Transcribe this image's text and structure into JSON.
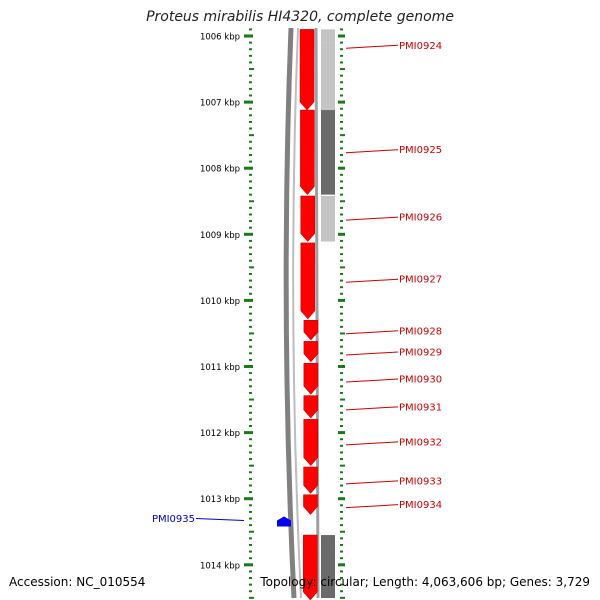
{
  "title": "Proteus mirabilis HI4320, complete genome",
  "accession": "Accession: NC_010554",
  "topology": "Topology: circular; Length: 4,063,606 bp; Genes: 3,729",
  "colors": {
    "gene_forward": "#ff0000",
    "gene_reverse": "#0000ee",
    "label_forward": "#cc0000",
    "label_reverse": "#0000cc",
    "tick": "#1a7a1a",
    "backbone": "#808080",
    "track_gray_light": "#c4c4c4",
    "track_gray_dark": "#6a6a6a"
  },
  "scale": {
    "ticks": [
      {
        "kbp": 1006,
        "label": "1006 kbp"
      },
      {
        "kbp": 1007,
        "label": "1007 kbp"
      },
      {
        "kbp": 1008,
        "label": "1008 kbp"
      },
      {
        "kbp": 1009,
        "label": "1009 kbp"
      },
      {
        "kbp": 1010,
        "label": "1010 kbp"
      },
      {
        "kbp": 1011,
        "label": "1011 kbp"
      },
      {
        "kbp": 1012,
        "label": "1012 kbp"
      },
      {
        "kbp": 1013,
        "label": "1013 kbp"
      },
      {
        "kbp": 1014,
        "label": "1014 kbp"
      }
    ]
  },
  "genes": [
    {
      "id": "PMI0924",
      "strand": "+",
      "start_kbp": 1005.9,
      "end_kbp": 1007.12,
      "label_kbp": 1006.14
    },
    {
      "id": "PMI0925",
      "strand": "+",
      "start_kbp": 1007.12,
      "end_kbp": 1008.4,
      "label_kbp": 1007.72
    },
    {
      "id": "PMI0926",
      "strand": "+",
      "start_kbp": 1008.42,
      "end_kbp": 1009.11,
      "label_kbp": 1008.74
    },
    {
      "id": "PMI0927",
      "strand": "+",
      "start_kbp": 1009.13,
      "end_kbp": 1010.28,
      "label_kbp": 1009.68
    },
    {
      "id": "PMI0928",
      "strand": "+",
      "start_kbp": 1010.3,
      "end_kbp": 1010.6,
      "label_kbp": 1010.46
    },
    {
      "id": "PMI0929",
      "strand": "+",
      "start_kbp": 1010.62,
      "end_kbp": 1010.93,
      "label_kbp": 1010.78
    },
    {
      "id": "PMI0930",
      "strand": "+",
      "start_kbp": 1010.95,
      "end_kbp": 1011.42,
      "label_kbp": 1011.19
    },
    {
      "id": "PMI0931",
      "strand": "+",
      "start_kbp": 1011.44,
      "end_kbp": 1011.78,
      "label_kbp": 1011.61
    },
    {
      "id": "PMI0932",
      "strand": "+",
      "start_kbp": 1011.8,
      "end_kbp": 1012.5,
      "label_kbp": 1012.14
    },
    {
      "id": "PMI0933",
      "strand": "+",
      "start_kbp": 1012.52,
      "end_kbp": 1012.92,
      "label_kbp": 1012.73
    },
    {
      "id": "PMI0934",
      "strand": "+",
      "start_kbp": 1012.94,
      "end_kbp": 1013.24,
      "label_kbp": 1013.09
    },
    {
      "id": "PMI0935",
      "strand": "-",
      "start_kbp": 1013.27,
      "end_kbp": 1013.42,
      "label_kbp": 1013.3
    },
    {
      "id": "",
      "strand": "+",
      "start_kbp": 1013.55,
      "end_kbp": 1014.6,
      "label_kbp": null
    }
  ],
  "feature_track": [
    {
      "start_kbp": 1005.9,
      "end_kbp": 1006.1,
      "shade": "light"
    },
    {
      "start_kbp": 1006.1,
      "end_kbp": 1007.12,
      "shade": "light"
    },
    {
      "start_kbp": 1007.12,
      "end_kbp": 1008.4,
      "shade": "dark"
    },
    {
      "start_kbp": 1008.42,
      "end_kbp": 1009.11,
      "shade": "light"
    },
    {
      "start_kbp": 1013.55,
      "end_kbp": 1014.6,
      "shade": "dark"
    }
  ]
}
